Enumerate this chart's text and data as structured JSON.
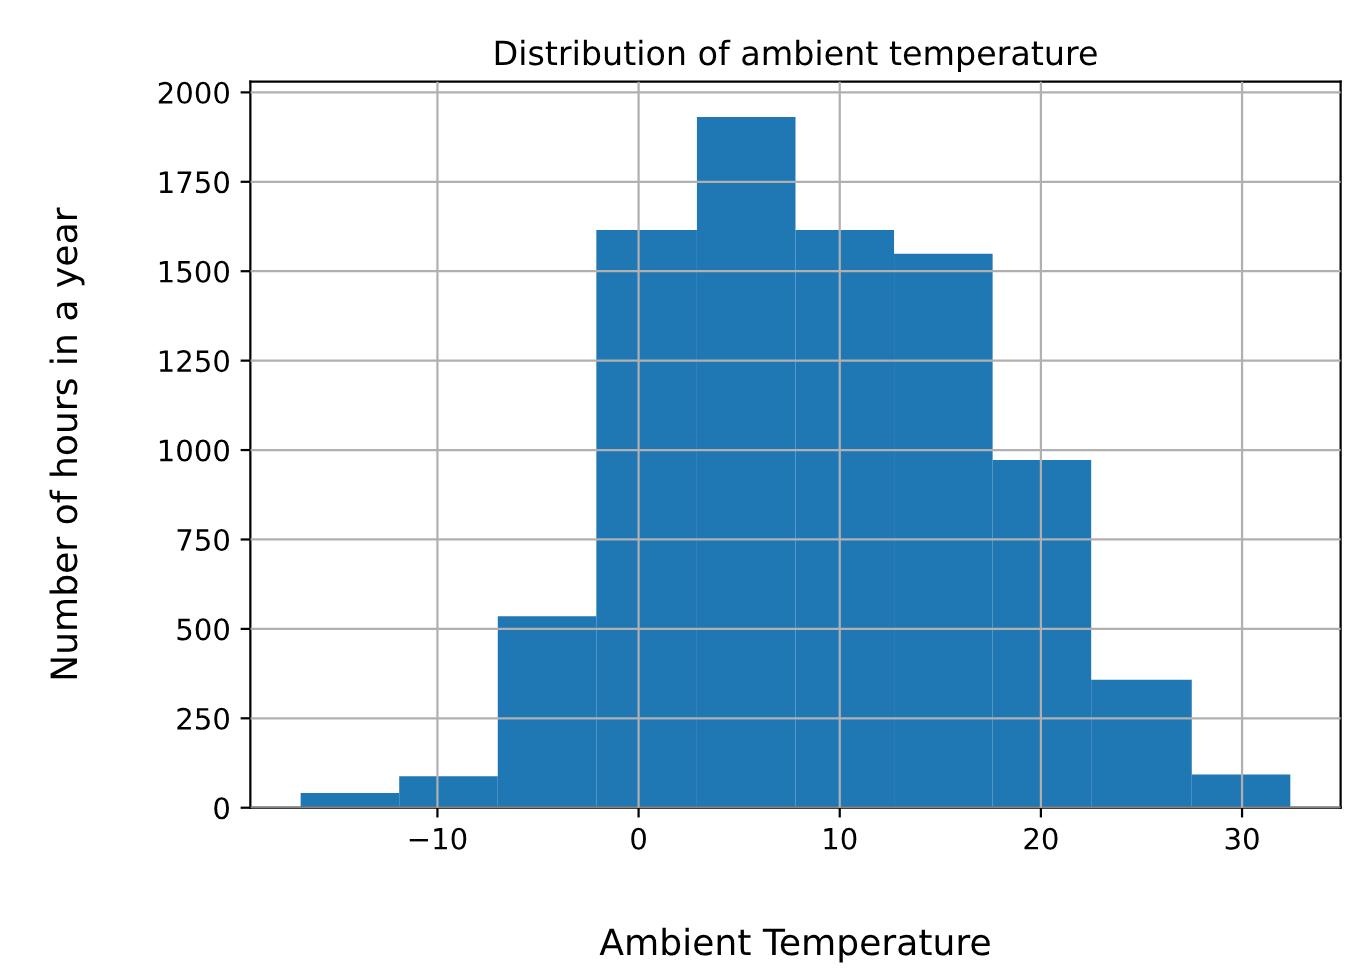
{
  "chart_data": {
    "type": "histogram",
    "title": "Distribution of ambient temperature",
    "xlabel": "Ambient Temperature",
    "ylabel": "Number of hours in a year",
    "bins": [
      -16.8,
      -11.9,
      -7.0,
      -2.1,
      2.9,
      7.8,
      12.7,
      17.6,
      22.5,
      27.5,
      32.4
    ],
    "values": [
      41,
      88,
      535,
      1615,
      1931,
      1615,
      1549,
      972,
      358,
      93
    ],
    "color": "#1f77b4",
    "xlim": [
      -19.3,
      34.9
    ],
    "ylim": [
      0,
      2030
    ],
    "xticks": [
      {
        "value": -10,
        "label": "−10"
      },
      0,
      10,
      20,
      30
    ],
    "yticks": [
      0,
      250,
      500,
      750,
      1000,
      1250,
      1500,
      1750,
      2000
    ],
    "grid": true
  }
}
